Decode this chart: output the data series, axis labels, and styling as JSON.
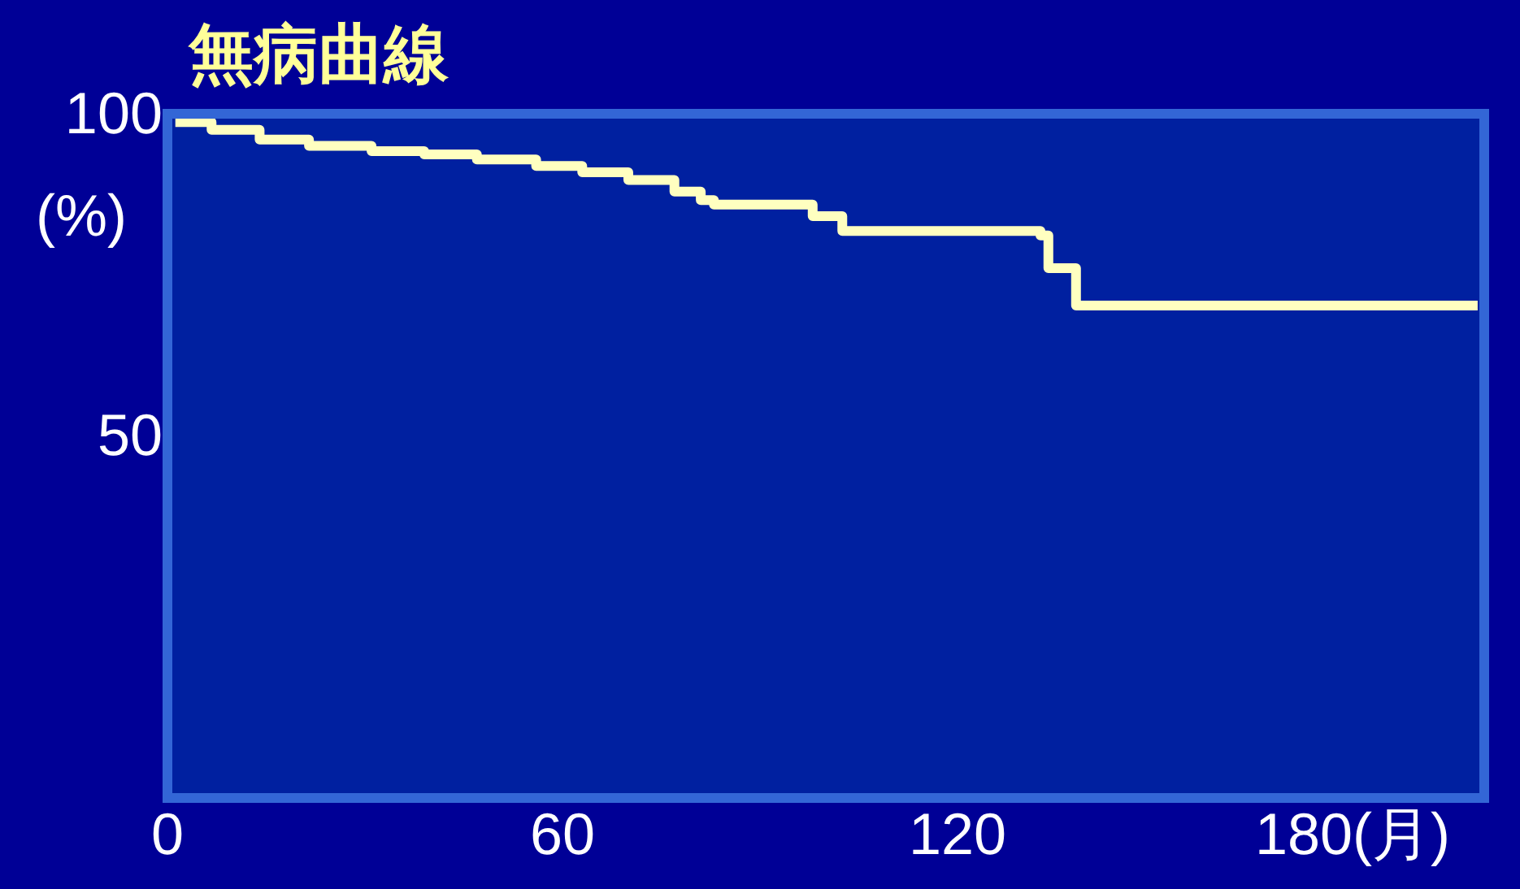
{
  "chart_data": {
    "type": "step",
    "title": "無病曲線",
    "ylabel": "(%)",
    "x": [
      1.2,
      6.7,
      14,
      21.5,
      31,
      39,
      47,
      56,
      63,
      70,
      77,
      81,
      83,
      98,
      102.5,
      132.6,
      133.8,
      138,
      199
    ],
    "series": [
      {
        "color": "#ffffc0",
        "values": [
          99.2,
          98,
          96.5,
          95.5,
          94.7,
          94.2,
          93.4,
          92.4,
          91.4,
          90.2,
          88.4,
          87.1,
          86.4,
          84.6,
          82.3,
          81.6,
          76.5,
          70.7,
          70.7
        ]
      }
    ],
    "xlim": [
      0,
      200
    ],
    "xticks": [
      0,
      60,
      120,
      {
        "value": 180,
        "label": "180(月)"
      }
    ],
    "ylim": [
      -5.8,
      100.5
    ],
    "yticks": [
      100,
      50
    ],
    "legend": false
  }
}
